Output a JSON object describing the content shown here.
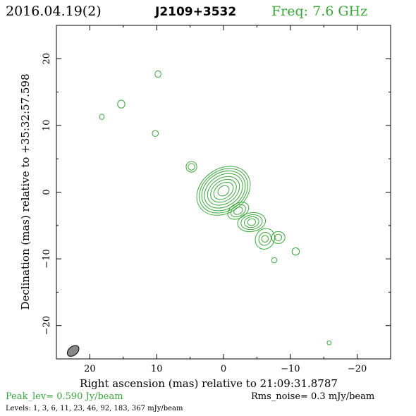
{
  "header": {
    "date": "2016.04.19(2)",
    "source": "J2109+3532",
    "freq": "Freq: 7.6 GHz"
  },
  "colors": {
    "contour": "#3aa63a",
    "text": "#000000",
    "green_text": "#3aa63a",
    "beam": "#888888"
  },
  "chart_data": {
    "type": "contour",
    "xlabel": "Right ascension (mas) relative to 21:09:31.8787",
    "ylabel": "Declination (mas) relative to +35:32:57.598",
    "xlim": [
      25,
      -25
    ],
    "ylim": [
      -25,
      25
    ],
    "x_ticks": [
      20,
      10,
      0,
      -10,
      -20
    ],
    "x_tick_labels": [
      "20",
      "10",
      "0",
      "−10",
      "−20"
    ],
    "y_ticks": [
      20,
      10,
      0,
      -10,
      -20
    ],
    "y_tick_labels": [
      "20",
      "10",
      "0",
      "−10",
      "−20"
    ],
    "components": [
      {
        "name": "core",
        "x": 0.0,
        "y": 0.2,
        "rx": [
          0.9,
          1.6,
          2.1,
          2.6,
          3.1,
          3.5,
          3.9,
          4.3
        ],
        "ry": [
          0.7,
          1.1,
          1.5,
          1.9,
          2.3,
          2.7,
          3.0,
          3.3
        ],
        "angle": -35
      },
      {
        "name": "jet1",
        "x": -2.2,
        "y": -2.8,
        "rx": [
          0.7,
          1.2,
          1.7
        ],
        "ry": [
          0.5,
          0.8,
          1.1
        ],
        "angle": -30
      },
      {
        "name": "jet2",
        "x": -4.2,
        "y": -4.5,
        "rx": [
          0.6,
          1.1,
          1.6,
          2.1
        ],
        "ry": [
          0.5,
          0.8,
          1.1,
          1.4
        ],
        "angle": -10
      },
      {
        "name": "jet3",
        "x": -6.2,
        "y": -7.0,
        "rx": [
          0.5,
          1.0,
          1.6
        ],
        "ry": [
          0.5,
          0.9,
          1.4
        ],
        "angle": -60
      },
      {
        "name": "jet4",
        "x": -8.2,
        "y": -6.8,
        "rx": [
          0.5,
          1.0
        ],
        "ry": [
          0.5,
          0.9
        ],
        "angle": 0
      },
      {
        "name": "knot-east",
        "x": 4.8,
        "y": 3.8,
        "rx": [
          0.5,
          0.8
        ],
        "ry": [
          0.5,
          0.8
        ],
        "angle": 0
      },
      {
        "name": "blob-a",
        "x": 15.3,
        "y": 13.2,
        "rx": [
          0.55
        ],
        "ry": [
          0.6
        ],
        "angle": 0
      },
      {
        "name": "blob-b",
        "x": 9.8,
        "y": 17.7,
        "rx": [
          0.45
        ],
        "ry": [
          0.5
        ],
        "angle": 0
      },
      {
        "name": "blob-c",
        "x": 18.2,
        "y": 11.3,
        "rx": [
          0.35
        ],
        "ry": [
          0.4
        ],
        "angle": 0
      },
      {
        "name": "blob-d",
        "x": 10.2,
        "y": 8.8,
        "rx": [
          0.45
        ],
        "ry": [
          0.45
        ],
        "angle": 0
      },
      {
        "name": "blob-e",
        "x": -10.8,
        "y": -8.9,
        "rx": [
          0.55
        ],
        "ry": [
          0.55
        ],
        "angle": 0
      },
      {
        "name": "blob-f",
        "x": -7.6,
        "y": -10.2,
        "rx": [
          0.4
        ],
        "ry": [
          0.4
        ],
        "angle": 0
      },
      {
        "name": "blob-g",
        "x": -15.8,
        "y": -22.6,
        "rx": [
          0.3
        ],
        "ry": [
          0.3
        ],
        "angle": 0
      }
    ],
    "beam": {
      "x": 22.5,
      "y": -23.8,
      "major": 2.0,
      "minor": 1.3,
      "angle": 40
    }
  },
  "footer": {
    "peak": "Peak_lev=  0.590 Jy/beam",
    "rms": "Rms_noise=   0.3 mJy/beam",
    "levels": "Levels:   1,    3,    6,   11,   23,   46,   92,  183,  367 mJy/beam"
  }
}
